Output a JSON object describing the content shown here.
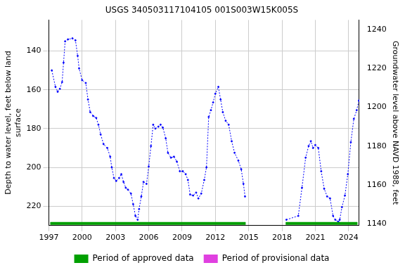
{
  "chart_data": {
    "type": "line",
    "title": "USGS 340503117104105 001S003W15K005S",
    "y_label": [
      "Depth to water level, feet below land",
      "surface"
    ],
    "y2_label": "Groundwater level above NAVD 1988, feet",
    "x": [
      1997.27,
      1997.6,
      1997.8,
      1998.0,
      1998.2,
      1998.33,
      1998.47,
      1998.73,
      1999.13,
      1999.4,
      1999.6,
      1999.73,
      2000.0,
      2000.33,
      2000.53,
      2000.73,
      2001.0,
      2001.27,
      2001.47,
      2001.67,
      2001.93,
      2002.27,
      2002.53,
      2002.67,
      2002.87,
      2003.07,
      2003.33,
      2003.53,
      2003.73,
      2003.93,
      2004.13,
      2004.4,
      2004.6,
      2004.8,
      2005.0,
      2005.13,
      2005.33,
      2005.53,
      2005.8,
      2006.0,
      2006.2,
      2006.4,
      2006.6,
      2006.87,
      2007.07,
      2007.27,
      2007.53,
      2007.73,
      2008.0,
      2008.27,
      2008.53,
      2008.8,
      2009.07,
      2009.33,
      2009.53,
      2009.73,
      2010.0,
      2010.27,
      2010.47,
      2010.73,
      2011.0,
      2011.2,
      2011.4,
      2011.6,
      2011.8,
      2012.0,
      2012.27,
      2012.47,
      2012.67,
      2012.93,
      2013.2,
      2013.47,
      2013.73,
      2014.07,
      2014.33,
      2014.53,
      2014.67,
      2016.5,
      2018.4,
      2019.47,
      2019.8,
      2020.13,
      2020.4,
      2020.6,
      2020.8,
      2021.0,
      2021.27,
      2021.53,
      2021.8,
      2022.07,
      2022.33,
      2022.6,
      2022.8,
      2023.07,
      2023.2,
      2023.4,
      2023.67,
      2023.93,
      2024.2,
      2024.47,
      2024.73,
      2024.93
    ],
    "values": [
      150,
      158.5,
      161,
      159.5,
      156,
      146,
      135,
      134,
      133.5,
      134.5,
      142.5,
      149,
      155,
      156.5,
      165,
      171.5,
      173.5,
      174.5,
      178,
      183,
      188,
      190,
      194.5,
      200,
      205.5,
      207,
      205.5,
      203.5,
      207.5,
      210.5,
      211.5,
      213.5,
      219,
      225,
      227,
      221.5,
      215,
      207.5,
      208.5,
      199.5,
      189,
      178,
      180,
      179,
      178,
      179.5,
      185,
      192.5,
      195,
      194.5,
      197,
      202,
      202,
      203.5,
      206.5,
      214,
      214.5,
      213,
      216,
      213.5,
      206.5,
      200,
      174,
      170.5,
      166.5,
      162,
      158.5,
      165,
      171.5,
      176,
      178,
      186.5,
      192.5,
      196.5,
      201,
      208.5,
      215,
      null,
      227,
      225,
      210.5,
      195,
      189,
      186.5,
      190,
      188.5,
      190,
      202,
      211,
      215,
      216,
      225,
      227,
      228,
      227,
      220.5,
      214.5,
      203.5,
      187,
      175,
      170.5,
      165.5
    ],
    "color": "#0000ff",
    "marker": "circle",
    "line_style": "dotted",
    "xlim": [
      1997,
      2024.95
    ],
    "xticks": [
      1997,
      2000,
      2003,
      2006,
      2009,
      2012,
      2015,
      2018,
      2021,
      2024
    ],
    "ylim": [
      124,
      230
    ],
    "yticks": [
      140,
      160,
      180,
      200,
      220
    ],
    "y2lim": [
      1139,
      1245
    ],
    "y2ticks": [
      1140,
      1160,
      1180,
      1200,
      1220,
      1240
    ],
    "grid": true,
    "legend": "bottom",
    "series": [
      {
        "name": "Period of approved data",
        "color": "#00a000",
        "periods": [
          [
            1997.13,
            2014.73
          ],
          [
            2018.33,
            2024.8
          ]
        ]
      },
      {
        "name": "Period of provisional data",
        "color": "#e040e0",
        "periods": []
      }
    ]
  }
}
